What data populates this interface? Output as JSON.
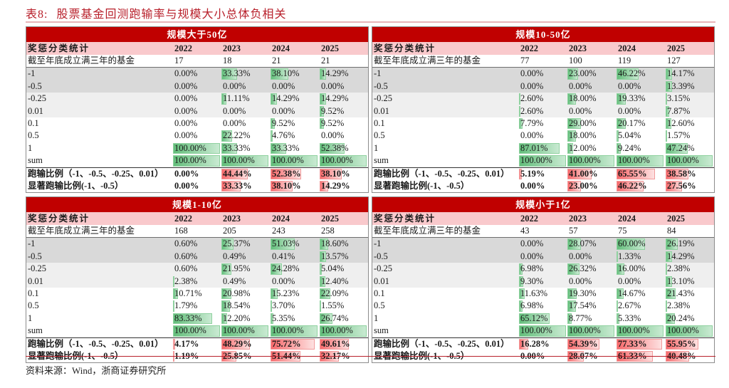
{
  "title": {
    "number": "表8:",
    "text": "股票基金回测跑输率与规模大小总体负相关"
  },
  "source": "资料来源：Wind，浙商证券研究所",
  "colors": {
    "header_red": "#c00000",
    "header_pink": "#f9c9cc",
    "green_bar": "#63be7b",
    "red_bar": "#f8696b",
    "title_red": "#b8202b"
  },
  "labels": {
    "colhead": "奖惩分类统计",
    "count": "截至年底成立满三年的基金",
    "rows": [
      "-1",
      "-0.5",
      "-0.25",
      "0.01",
      "0.1",
      "0.5",
      "1",
      "sum"
    ],
    "summary1": "跑输比例（-1、-0.5、-0.25、0.01）",
    "summary2": "显著跑输比例(-1、-0.5）"
  },
  "years": [
    "2022",
    "2023",
    "2024",
    "2025"
  ],
  "panels": [
    {
      "title": "规模大于50亿",
      "count": [
        "17",
        "18",
        "21",
        "21"
      ],
      "rows": [
        [
          "0.00%",
          "33.33%",
          "38.10%",
          "14.29%"
        ],
        [
          "0.00%",
          "0.00%",
          "0.00%",
          "0.00%"
        ],
        [
          "0.00%",
          "11.11%",
          "14.29%",
          "14.29%"
        ],
        [
          "0.00%",
          "0.00%",
          "0.00%",
          "9.52%"
        ],
        [
          "0.00%",
          "0.00%",
          "9.52%",
          "9.52%"
        ],
        [
          "0.00%",
          "22.22%",
          "4.76%",
          "0.00%"
        ],
        [
          "100.00%",
          "33.33%",
          "33.33%",
          "52.38%"
        ],
        [
          "100.00%",
          "100.00%",
          "100.00%",
          "100.00%"
        ]
      ],
      "summary1": [
        "0.00%",
        "44.44%",
        "52.38%",
        "38.10%"
      ],
      "summary2": [
        "0.00%",
        "33.33%",
        "38.10%",
        "14.29%"
      ]
    },
    {
      "title": "规模10-50亿",
      "count": [
        "77",
        "100",
        "119",
        "127"
      ],
      "rows": [
        [
          "0.00%",
          "23.00%",
          "46.22%",
          "14.17%"
        ],
        [
          "0.00%",
          "0.00%",
          "0.00%",
          "13.39%"
        ],
        [
          "2.60%",
          "18.00%",
          "19.33%",
          "3.15%"
        ],
        [
          "2.60%",
          "0.00%",
          "0.00%",
          "7.87%"
        ],
        [
          "7.79%",
          "29.00%",
          "20.17%",
          "12.60%"
        ],
        [
          "0.00%",
          "18.00%",
          "5.04%",
          "1.57%"
        ],
        [
          "87.01%",
          "12.00%",
          "9.24%",
          "47.24%"
        ],
        [
          "100.00%",
          "100.00%",
          "100.00%",
          "100.00%"
        ]
      ],
      "summary1": [
        "5.19%",
        "41.00%",
        "65.55%",
        "38.58%"
      ],
      "summary2": [
        "0.00%",
        "23.00%",
        "46.22%",
        "27.56%"
      ]
    },
    {
      "title": "规模1-10亿",
      "count": [
        "168",
        "205",
        "243",
        "258"
      ],
      "rows": [
        [
          "0.60%",
          "25.37%",
          "51.03%",
          "18.60%"
        ],
        [
          "0.60%",
          "0.49%",
          "0.41%",
          "13.57%"
        ],
        [
          "0.60%",
          "21.95%",
          "24.28%",
          "5.04%"
        ],
        [
          "2.38%",
          "0.49%",
          "0.00%",
          "12.40%"
        ],
        [
          "10.71%",
          "20.98%",
          "15.23%",
          "22.09%"
        ],
        [
          "1.79%",
          "18.54%",
          "3.70%",
          "1.55%"
        ],
        [
          "83.33%",
          "12.20%",
          "5.35%",
          "26.74%"
        ],
        [
          "100.00%",
          "100.00%",
          "100.00%",
          "100.00%"
        ]
      ],
      "summary1": [
        "4.17%",
        "48.29%",
        "75.72%",
        "49.61%"
      ],
      "summary2": [
        "1.19%",
        "25.85%",
        "51.44%",
        "32.17%"
      ]
    },
    {
      "title": "规模小于1亿",
      "count": [
        "43",
        "57",
        "75",
        "84"
      ],
      "rows": [
        [
          "0.00%",
          "28.07%",
          "60.00%",
          "26.19%"
        ],
        [
          "0.00%",
          "0.00%",
          "1.33%",
          "14.29%"
        ],
        [
          "6.98%",
          "26.32%",
          "16.00%",
          "2.38%"
        ],
        [
          "9.30%",
          "0.00%",
          "0.00%",
          "13.10%"
        ],
        [
          "11.63%",
          "19.30%",
          "14.67%",
          "21.43%"
        ],
        [
          "6.98%",
          "17.54%",
          "2.67%",
          "2.38%"
        ],
        [
          "65.12%",
          "8.77%",
          "5.33%",
          "20.24%"
        ],
        [
          "100.00%",
          "100.00%",
          "100.00%",
          "100.00%"
        ]
      ],
      "summary1": [
        "16.28%",
        "54.39%",
        "77.33%",
        "55.95%"
      ],
      "summary2": [
        "0.00%",
        "28.07%",
        "61.33%",
        "40.48%"
      ]
    }
  ]
}
